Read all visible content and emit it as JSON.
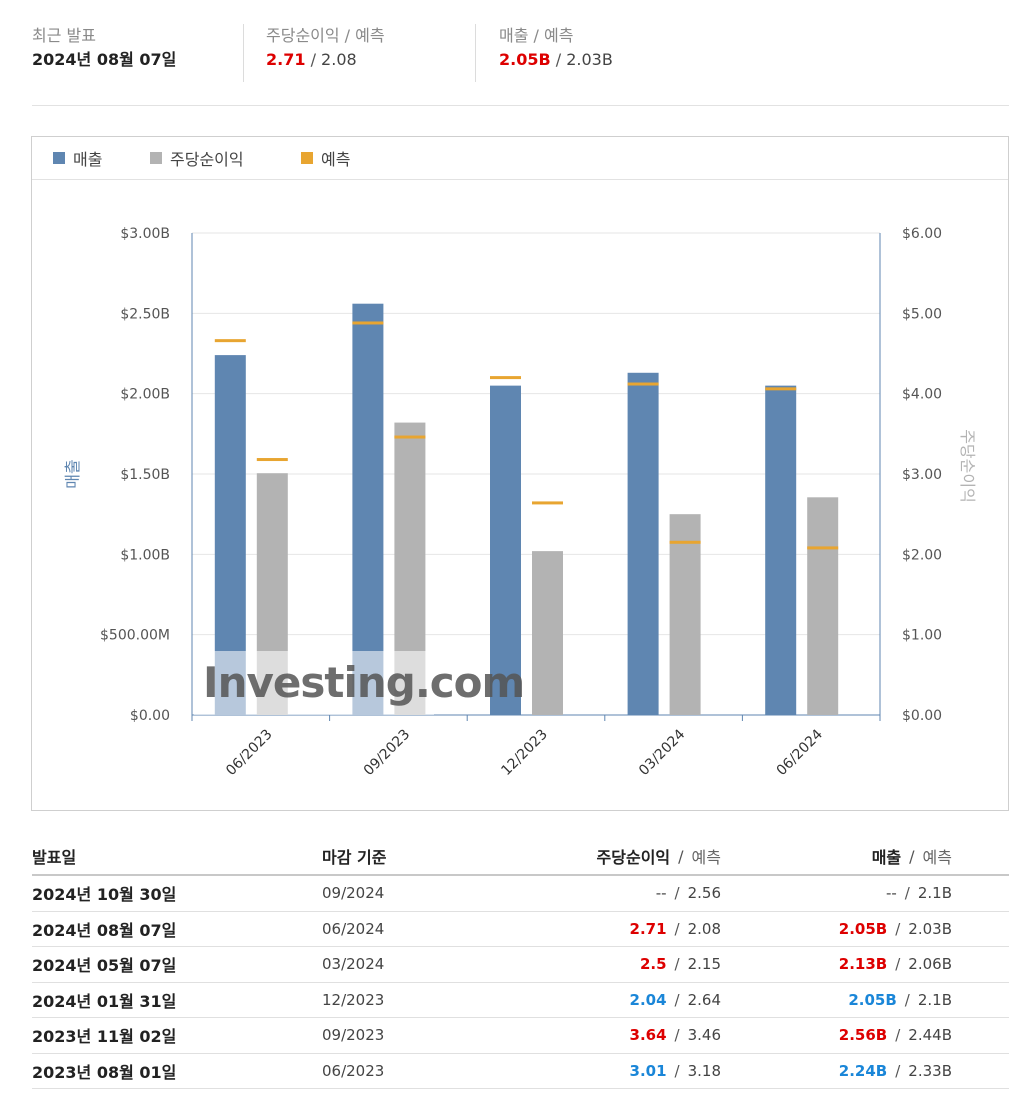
{
  "summary": {
    "latest_label": "최근 발표",
    "latest_date": "2024년 08월 07일",
    "eps_label": "주당순이익 / 예측",
    "eps_actual": "2.71",
    "eps_forecast": "2.08",
    "rev_label": "매출 / 예측",
    "rev_actual": "2.05B",
    "rev_forecast": "2.03B"
  },
  "legend": {
    "revenue": "매출",
    "eps": "주당순이익",
    "forecast": "예측"
  },
  "colors": {
    "revenue": "#5f86b1",
    "eps": "#b3b3b3",
    "forecast": "#e8a531",
    "beat": "#dd0000",
    "miss": "#1a86d8"
  },
  "chart_data": {
    "type": "bar",
    "categories": [
      "06/2023",
      "09/2023",
      "12/2023",
      "03/2024",
      "06/2024"
    ],
    "series": [
      {
        "name": "매출",
        "axis": "left",
        "values": [
          2.24,
          2.56,
          2.05,
          2.13,
          2.05
        ]
      },
      {
        "name": "주당순이익",
        "axis": "right",
        "values": [
          3.01,
          3.64,
          2.04,
          2.5,
          2.71
        ]
      }
    ],
    "forecast": {
      "name": "예측",
      "revenue": [
        2.33,
        2.44,
        2.1,
        2.06,
        2.03
      ],
      "eps": [
        3.18,
        3.46,
        2.64,
        2.15,
        2.08
      ]
    },
    "ylabel_left": "매출",
    "ylabel_right": "주당순이익",
    "ylim_left": [
      0,
      3
    ],
    "ylim_right": [
      0,
      6
    ],
    "yticks_left": [
      "$0.00",
      "$500.00M",
      "$1.00B",
      "$1.50B",
      "$2.00B",
      "$2.50B",
      "$3.00B"
    ],
    "yticks_right": [
      "$0.00",
      "$1.00",
      "$2.00",
      "$3.00",
      "$4.00",
      "$5.00",
      "$6.00"
    ],
    "grid": true,
    "legend_position": "top-left",
    "watermark": "Investing.com"
  },
  "table": {
    "headers": {
      "date": "발표일",
      "period": "마감 기준",
      "eps": "주당순이익",
      "eps_forecast": "예측",
      "rev": "매출",
      "rev_forecast": "예측"
    },
    "rows": [
      {
        "date": "2024년 10월 30일",
        "period": "09/2024",
        "eps": "--",
        "eps_status": "none",
        "eps_forecast": "2.56",
        "rev": "--",
        "rev_status": "none",
        "rev_forecast": "2.1B"
      },
      {
        "date": "2024년 08월 07일",
        "period": "06/2024",
        "eps": "2.71",
        "eps_status": "beat",
        "eps_forecast": "2.08",
        "rev": "2.05B",
        "rev_status": "beat",
        "rev_forecast": "2.03B"
      },
      {
        "date": "2024년 05월 07일",
        "period": "03/2024",
        "eps": "2.5",
        "eps_status": "beat",
        "eps_forecast": "2.15",
        "rev": "2.13B",
        "rev_status": "beat",
        "rev_forecast": "2.06B"
      },
      {
        "date": "2024년 01월 31일",
        "period": "12/2023",
        "eps": "2.04",
        "eps_status": "miss",
        "eps_forecast": "2.64",
        "rev": "2.05B",
        "rev_status": "miss",
        "rev_forecast": "2.1B"
      },
      {
        "date": "2023년 11월 02일",
        "period": "09/2023",
        "eps": "3.64",
        "eps_status": "beat",
        "eps_forecast": "3.46",
        "rev": "2.56B",
        "rev_status": "beat",
        "rev_forecast": "2.44B"
      },
      {
        "date": "2023년 08월 01일",
        "period": "06/2023",
        "eps": "3.01",
        "eps_status": "miss",
        "eps_forecast": "3.18",
        "rev": "2.24B",
        "rev_status": "miss",
        "rev_forecast": "2.33B"
      }
    ]
  }
}
